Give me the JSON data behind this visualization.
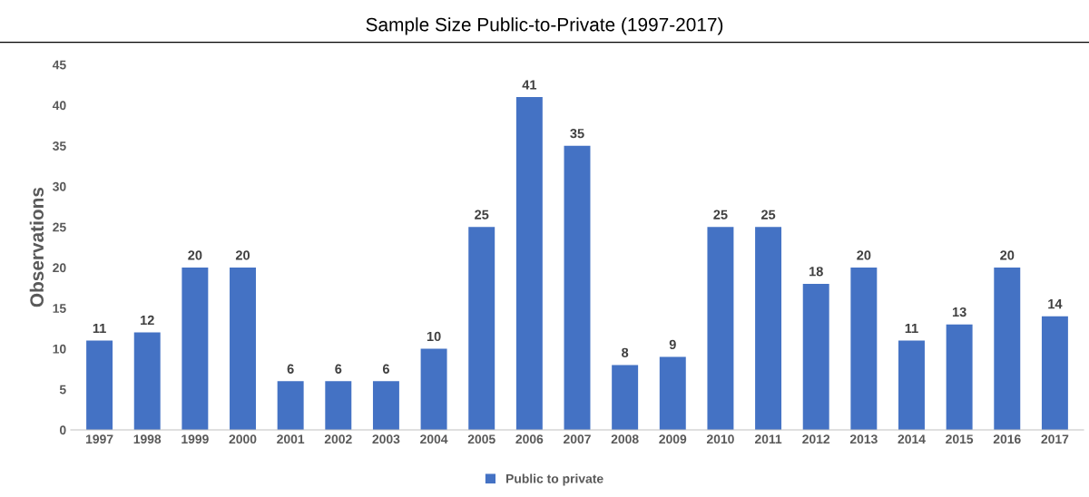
{
  "chart_data": {
    "type": "bar",
    "title": "Sample Size Public-to-Private (1997-2017)",
    "ylabel": "Observations",
    "categories": [
      "1997",
      "1998",
      "1999",
      "2000",
      "2001",
      "2002",
      "2003",
      "2004",
      "2005",
      "2006",
      "2007",
      "2008",
      "2009",
      "2010",
      "2011",
      "2012",
      "2013",
      "2014",
      "2015",
      "2016",
      "2017"
    ],
    "series": [
      {
        "name": "Public to private",
        "color": "#4472c4",
        "values": [
          11,
          12,
          20,
          20,
          6,
          6,
          6,
          10,
          25,
          41,
          35,
          8,
          9,
          25,
          25,
          18,
          20,
          11,
          13,
          20,
          14
        ]
      }
    ],
    "ylim": [
      0,
      45
    ],
    "yticks": [
      0,
      5,
      10,
      15,
      20,
      25,
      30,
      35,
      40,
      45
    ],
    "data_labels": true,
    "legend": "bottom",
    "grid": false
  }
}
